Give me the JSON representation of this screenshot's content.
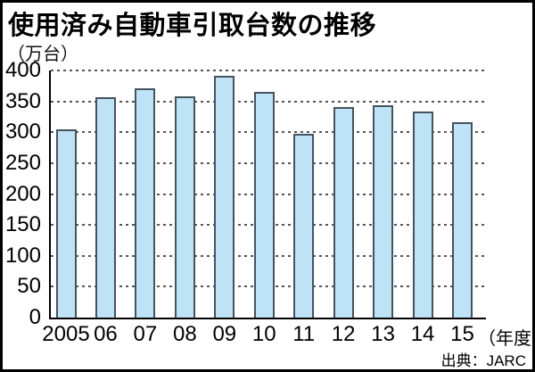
{
  "title": "使用済み自動車引取台数の推移",
  "source_note": "出典：JARC",
  "chart_data": {
    "type": "bar",
    "title": "使用済み自動車引取台数の推移",
    "unit_label": "（万台）",
    "xaxis_suffix": "（年度）",
    "xlabel": "年度",
    "ylabel": "万台",
    "categories": [
      "2005",
      "06",
      "07",
      "08",
      "09",
      "10",
      "11",
      "12",
      "13",
      "14",
      "15"
    ],
    "values": [
      305,
      357,
      371,
      358,
      392,
      365,
      297,
      341,
      343,
      334,
      316
    ],
    "ylim": [
      0,
      400
    ],
    "yticks": [
      0,
      50,
      100,
      150,
      200,
      250,
      300,
      350,
      400
    ],
    "grid": "horizontal-dashed",
    "legend": "none",
    "colors": {
      "bar_fill": "#bfe3f6",
      "bar_border": "#46535e",
      "gridline": "#555555",
      "axis": "#000000",
      "text": "#000000",
      "background": "#ffffff"
    }
  }
}
